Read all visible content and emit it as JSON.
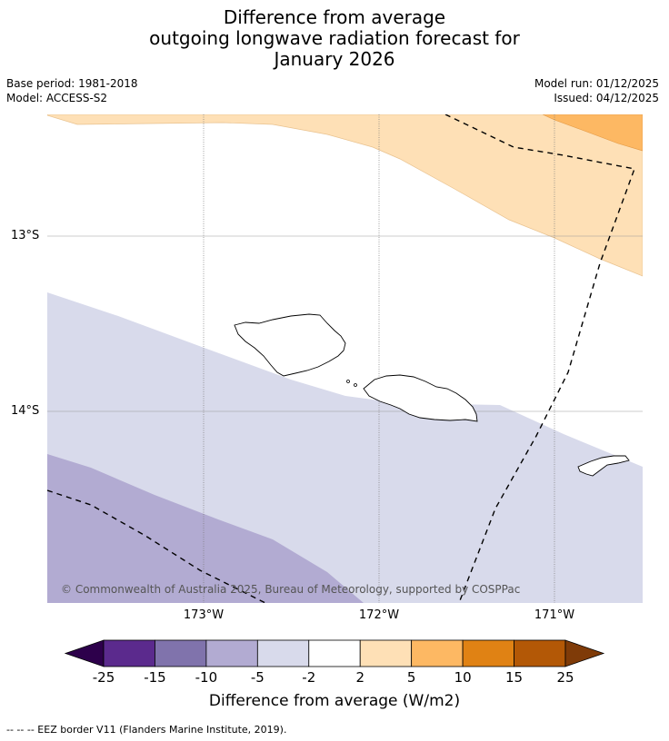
{
  "title": {
    "line1": "Difference from average",
    "line2": "outgoing longwave radiation forecast for",
    "line3": "January 2026"
  },
  "meta": {
    "base_period": "Base period: 1981-2018",
    "model": "Model: ACCESS-S2",
    "model_run": "Model run: 01/12/2025",
    "issued": "Issued: 04/12/2025"
  },
  "map": {
    "lat_labels": [
      "13°S",
      "14°S"
    ],
    "lon_labels": [
      "173°W",
      "172°W",
      "171°W"
    ],
    "copyright": "© Commonwealth of Australia 2025, Bureau of Meteorology, supported by COSPPac"
  },
  "colorbar": {
    "ticks": [
      "-25",
      "-15",
      "-10",
      "-5",
      "-2",
      "2",
      "5",
      "10",
      "15",
      "25"
    ],
    "colors": [
      "#2d004b",
      "#5b2a8d",
      "#8073ac",
      "#b2abd2",
      "#d8daeb",
      "#ffffff",
      "#fee0b6",
      "#fdb863",
      "#e08214",
      "#b35806",
      "#7f3b08"
    ],
    "title": "Difference from average (W/m2)"
  },
  "legend_note": "--  --  -- EEZ border V11 (Flanders Marine Institute, 2019)."
}
